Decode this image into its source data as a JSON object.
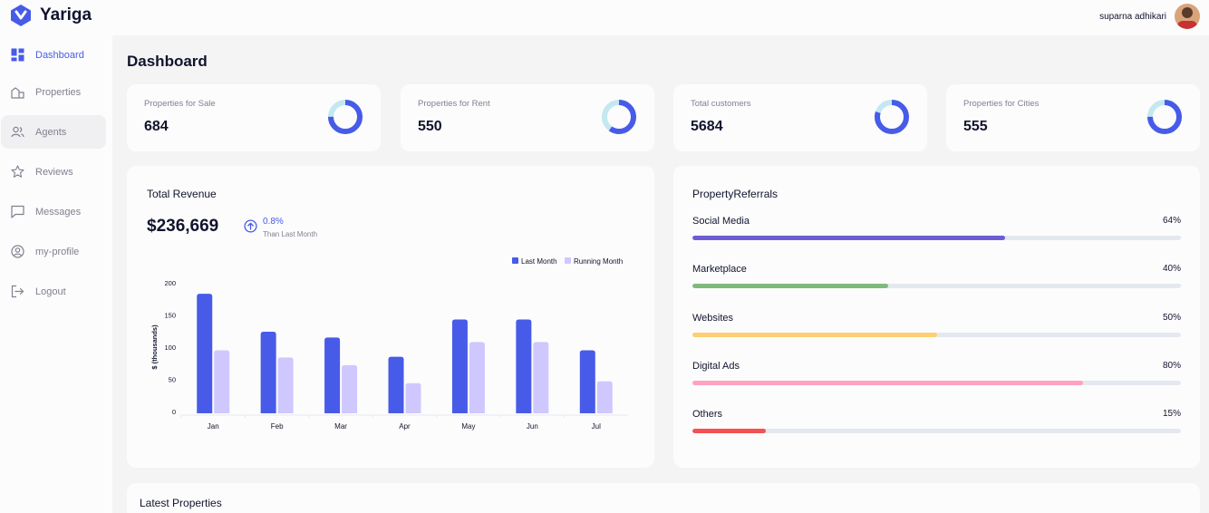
{
  "app": {
    "name": "Yariga"
  },
  "user": {
    "name": "suparna adhikari"
  },
  "sidebar": {
    "items": [
      {
        "label": "Dashboard",
        "icon": "dashboard-icon",
        "active": true
      },
      {
        "label": "Properties",
        "icon": "properties-icon"
      },
      {
        "label": "Agents",
        "icon": "agents-icon",
        "hover": true
      },
      {
        "label": "Reviews",
        "icon": "star-icon"
      },
      {
        "label": "Messages",
        "icon": "message-icon"
      },
      {
        "label": "my-profile",
        "icon": "profile-icon"
      },
      {
        "label": "Logout",
        "icon": "logout-icon"
      }
    ]
  },
  "page": {
    "title": "Dashboard"
  },
  "stats": [
    {
      "label": "Properties for Sale",
      "value": "684",
      "fill_fraction": 0.75
    },
    {
      "label": "Properties for Rent",
      "value": "550",
      "fill_fraction": 0.6
    },
    {
      "label": "Total customers",
      "value": "5684",
      "fill_fraction": 0.8
    },
    {
      "label": "Properties for Cities",
      "value": "555",
      "fill_fraction": 0.75
    }
  ],
  "revenue": {
    "title": "Total Revenue",
    "amount": "$236,669",
    "change": "0.8%",
    "change_caption": "Than Last Month"
  },
  "referrals": {
    "title": "PropertyReferrals",
    "items": [
      {
        "name": "Social Media",
        "percent_label": "64%",
        "value": 64,
        "color": "#6c5dd3"
      },
      {
        "name": "Marketplace",
        "percent_label": "40%",
        "value": 40,
        "color": "#7fba7a"
      },
      {
        "name": "Websites",
        "percent_label": "50%",
        "value": 50,
        "color": "#ffce73"
      },
      {
        "name": "Digital Ads",
        "percent_label": "80%",
        "value": 80,
        "color": "#ffa2c0"
      },
      {
        "name": "Others",
        "percent_label": "15%",
        "value": 15,
        "color": "#f45252"
      }
    ]
  },
  "latest": {
    "title": "Latest Properties"
  },
  "colors": {
    "accent": "#475be8",
    "donut_track": "#c4e8ef",
    "bar_last": "#475be8",
    "bar_running": "#cfc8ff"
  },
  "chart_data": {
    "type": "bar",
    "title": "",
    "xlabel": "",
    "ylabel": "$ (thousands)",
    "ylim": [
      0,
      200
    ],
    "yticks": [
      0,
      50,
      100,
      150,
      200
    ],
    "categories": [
      "Jan",
      "Feb",
      "Mar",
      "Apr",
      "May",
      "Jun",
      "Jul"
    ],
    "series": [
      {
        "name": "Last Month",
        "color": "#475be8",
        "values": [
          183,
          124,
          115,
          85,
          143,
          143,
          95
        ]
      },
      {
        "name": "Running Month",
        "color": "#cfc8ff",
        "values": [
          95,
          84,
          72,
          44,
          108,
          108,
          47
        ]
      }
    ],
    "legend": "top-right"
  }
}
